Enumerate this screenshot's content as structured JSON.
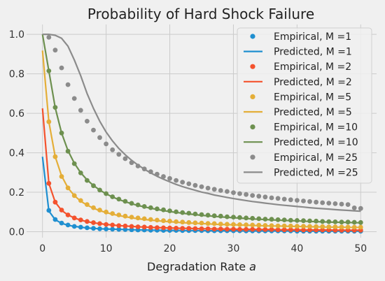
{
  "chart_data": {
    "type": "line",
    "title": "Probability of Hard Shock Failure",
    "xlabel": "Degradation Rate $a$",
    "ylabel": "",
    "xlim": [
      -2.5,
      52.5
    ],
    "ylim": [
      -0.03,
      1.05
    ],
    "xticks": [
      0,
      10,
      20,
      30,
      40,
      50
    ],
    "yticks": [
      0.0,
      0.2,
      0.4,
      0.6,
      0.8,
      1.0
    ],
    "xtick_labels": [
      "0",
      "10",
      "20",
      "30",
      "40",
      "50"
    ],
    "ytick_labels": [
      "0.0",
      "0.2",
      "0.4",
      "0.6",
      "0.8",
      "1.0"
    ],
    "grid": true,
    "legend_position": "top-right",
    "x": [
      0,
      1,
      2,
      3,
      4,
      5,
      6,
      7,
      8,
      9,
      10,
      11,
      12,
      13,
      14,
      15,
      16,
      17,
      18,
      19,
      20,
      21,
      22,
      23,
      24,
      25,
      26,
      27,
      28,
      29,
      30,
      31,
      32,
      33,
      34,
      35,
      36,
      37,
      38,
      39,
      40,
      41,
      42,
      43,
      44,
      45,
      46,
      47,
      48,
      49,
      50
    ],
    "series": [
      {
        "name": "M =1",
        "color": "#1f8fd0",
        "empirical": [
          null,
          0.108,
          0.062,
          0.044,
          0.034,
          0.027,
          0.023,
          0.02,
          0.017,
          0.015,
          0.014,
          0.013,
          0.012,
          0.011,
          0.01,
          0.009,
          0.009,
          0.008,
          0.008,
          0.007,
          0.007,
          0.007,
          0.006,
          0.006,
          0.006,
          0.006,
          0.005,
          0.005,
          0.005,
          0.005,
          0.005,
          0.005,
          0.004,
          0.004,
          0.004,
          0.004,
          0.004,
          0.004,
          0.004,
          0.004,
          0.003,
          0.003,
          0.003,
          0.003,
          0.003,
          0.003,
          0.003,
          0.003,
          0.003,
          0.003,
          0.003
        ],
        "predicted": [
          0.38,
          0.105,
          0.061,
          0.043,
          0.033,
          0.027,
          0.023,
          0.019,
          0.017,
          0.015,
          0.014,
          0.013,
          0.012,
          0.011,
          0.01,
          0.009,
          0.009,
          0.008,
          0.008,
          0.007,
          0.007,
          0.007,
          0.006,
          0.006,
          0.006,
          0.006,
          0.005,
          0.005,
          0.005,
          0.005,
          0.005,
          0.005,
          0.004,
          0.004,
          0.004,
          0.004,
          0.004,
          0.004,
          0.004,
          0.004,
          0.003,
          0.003,
          0.003,
          0.003,
          0.003,
          0.003,
          0.003,
          0.003,
          0.003,
          0.003,
          0.003
        ]
      },
      {
        "name": "M =2",
        "color": "#f4522d",
        "empirical": [
          null,
          0.245,
          0.15,
          0.11,
          0.085,
          0.07,
          0.06,
          0.052,
          0.046,
          0.041,
          0.037,
          0.034,
          0.031,
          0.029,
          0.027,
          0.025,
          0.024,
          0.022,
          0.021,
          0.02,
          0.019,
          0.018,
          0.017,
          0.017,
          0.016,
          0.015,
          0.015,
          0.014,
          0.014,
          0.013,
          0.013,
          0.012,
          0.012,
          0.012,
          0.011,
          0.011,
          0.011,
          0.01,
          0.01,
          0.01,
          0.01,
          0.009,
          0.009,
          0.009,
          0.009,
          0.009,
          0.008,
          0.008,
          0.008,
          0.008,
          0.008
        ],
        "predicted": [
          0.625,
          0.245,
          0.15,
          0.108,
          0.085,
          0.07,
          0.059,
          0.051,
          0.045,
          0.041,
          0.037,
          0.034,
          0.031,
          0.029,
          0.027,
          0.025,
          0.024,
          0.022,
          0.021,
          0.02,
          0.019,
          0.018,
          0.017,
          0.017,
          0.016,
          0.015,
          0.015,
          0.014,
          0.014,
          0.013,
          0.013,
          0.012,
          0.012,
          0.012,
          0.011,
          0.011,
          0.011,
          0.01,
          0.01,
          0.01,
          0.01,
          0.009,
          0.009,
          0.009,
          0.009,
          0.009,
          0.008,
          0.008,
          0.008,
          0.008,
          0.008
        ]
      },
      {
        "name": "M =5",
        "color": "#e4ae38",
        "empirical": [
          null,
          0.557,
          0.38,
          0.28,
          0.222,
          0.183,
          0.158,
          0.138,
          0.122,
          0.11,
          0.1,
          0.092,
          0.085,
          0.079,
          0.074,
          0.07,
          0.066,
          0.062,
          0.059,
          0.056,
          0.054,
          0.051,
          0.049,
          0.047,
          0.045,
          0.044,
          0.042,
          0.041,
          0.039,
          0.038,
          0.037,
          0.036,
          0.035,
          0.034,
          0.033,
          0.032,
          0.031,
          0.03,
          0.03,
          0.029,
          0.028,
          0.028,
          0.027,
          0.026,
          0.026,
          0.025,
          0.025,
          0.024,
          0.024,
          0.023,
          0.023
        ],
        "predicted": [
          0.918,
          0.557,
          0.38,
          0.283,
          0.222,
          0.183,
          0.155,
          0.135,
          0.119,
          0.107,
          0.097,
          0.089,
          0.082,
          0.076,
          0.071,
          0.066,
          0.062,
          0.059,
          0.056,
          0.053,
          0.051,
          0.048,
          0.046,
          0.044,
          0.043,
          0.041,
          0.04,
          0.038,
          0.037,
          0.036,
          0.035,
          0.034,
          0.033,
          0.032,
          0.031,
          0.03,
          0.029,
          0.029,
          0.028,
          0.027,
          0.027,
          0.026,
          0.025,
          0.025,
          0.024,
          0.024,
          0.023,
          0.023,
          0.022,
          0.022,
          0.022
        ]
      },
      {
        "name": "M =10",
        "color": "#6d904f",
        "empirical": [
          null,
          0.815,
          0.63,
          0.5,
          0.408,
          0.345,
          0.298,
          0.26,
          0.233,
          0.211,
          0.193,
          0.177,
          0.165,
          0.154,
          0.144,
          0.136,
          0.128,
          0.122,
          0.116,
          0.111,
          0.106,
          0.101,
          0.097,
          0.094,
          0.09,
          0.087,
          0.084,
          0.081,
          0.079,
          0.076,
          0.074,
          0.072,
          0.07,
          0.068,
          0.066,
          0.064,
          0.063,
          0.061,
          0.06,
          0.058,
          0.057,
          0.056,
          0.055,
          0.054,
          0.052,
          0.051,
          0.05,
          0.049,
          0.049,
          0.048,
          0.047
        ],
        "predicted": [
          1.0,
          0.815,
          0.628,
          0.5,
          0.411,
          0.347,
          0.299,
          0.263,
          0.234,
          0.211,
          0.192,
          0.176,
          0.163,
          0.152,
          0.142,
          0.133,
          0.126,
          0.119,
          0.113,
          0.107,
          0.102,
          0.098,
          0.094,
          0.09,
          0.087,
          0.083,
          0.081,
          0.078,
          0.075,
          0.073,
          0.071,
          0.069,
          0.067,
          0.065,
          0.063,
          0.062,
          0.06,
          0.059,
          0.057,
          0.056,
          0.055,
          0.054,
          0.052,
          0.051,
          0.05,
          0.049,
          0.048,
          0.048,
          0.047,
          0.046,
          0.045
        ]
      },
      {
        "name": "M =25",
        "color": "#8b8b8b",
        "empirical": [
          null,
          0.985,
          0.92,
          0.83,
          0.745,
          0.675,
          0.615,
          0.56,
          0.515,
          0.477,
          0.445,
          0.415,
          0.392,
          0.37,
          0.35,
          0.333,
          0.318,
          0.304,
          0.292,
          0.28,
          0.27,
          0.26,
          0.251,
          0.243,
          0.235,
          0.228,
          0.221,
          0.215,
          0.209,
          0.204,
          0.198,
          0.193,
          0.189,
          0.184,
          0.18,
          0.176,
          0.172,
          0.169,
          0.165,
          0.162,
          0.159,
          0.156,
          0.153,
          0.15,
          0.147,
          0.145,
          0.142,
          0.14,
          0.138,
          0.121,
          0.118
        ],
        "predicted": [
          1.0,
          1.0,
          0.995,
          0.98,
          0.94,
          0.87,
          0.79,
          0.7,
          0.625,
          0.56,
          0.505,
          0.46,
          0.422,
          0.39,
          0.362,
          0.338,
          0.317,
          0.298,
          0.281,
          0.266,
          0.253,
          0.24,
          0.229,
          0.219,
          0.21,
          0.201,
          0.194,
          0.186,
          0.18,
          0.174,
          0.168,
          0.163,
          0.158,
          0.153,
          0.149,
          0.145,
          0.141,
          0.137,
          0.134,
          0.131,
          0.128,
          0.125,
          0.122,
          0.119,
          0.117,
          0.115,
          0.112,
          0.11,
          0.108,
          0.106,
          0.104
        ]
      }
    ],
    "legend": [
      {
        "label": "Empirical, M =1",
        "kind": "marker",
        "series": 0
      },
      {
        "label": "Predicted, M =1",
        "kind": "line",
        "series": 0
      },
      {
        "label": "Empirical, M =2",
        "kind": "marker",
        "series": 1
      },
      {
        "label": "Predicted, M =2",
        "kind": "line",
        "series": 1
      },
      {
        "label": "Empirical, M =5",
        "kind": "marker",
        "series": 2
      },
      {
        "label": "Predicted, M =5",
        "kind": "line",
        "series": 2
      },
      {
        "label": "Empirical, M =10",
        "kind": "marker",
        "series": 3
      },
      {
        "label": "Predicted, M =10",
        "kind": "line",
        "series": 3
      },
      {
        "label": "Empirical, M =25",
        "kind": "marker",
        "series": 4
      },
      {
        "label": "Predicted, M =25",
        "kind": "line",
        "series": 4
      }
    ]
  }
}
